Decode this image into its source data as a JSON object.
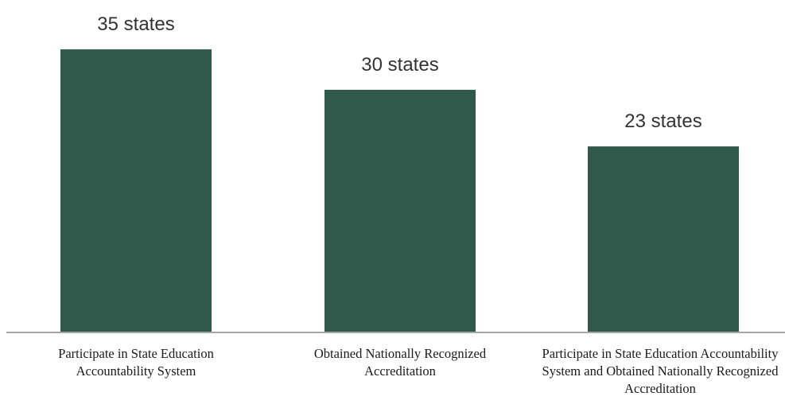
{
  "chart_data": {
    "type": "bar",
    "categories": [
      "Participate in State Education Accountability System",
      "Obtained Nationally Recognized Accreditation",
      "Participate in State Education Accountability System and Obtained Nationally Recognized Accreditation"
    ],
    "values": [
      35,
      30,
      23
    ],
    "data_labels": [
      "35 states",
      "30 states",
      "23 states"
    ],
    "title": "",
    "xlabel": "",
    "ylabel": "",
    "ylim": [
      0,
      36
    ],
    "grid": false,
    "legend": "none",
    "colors": {
      "bar": "#31594b",
      "axis": "#a6a6a6"
    }
  }
}
